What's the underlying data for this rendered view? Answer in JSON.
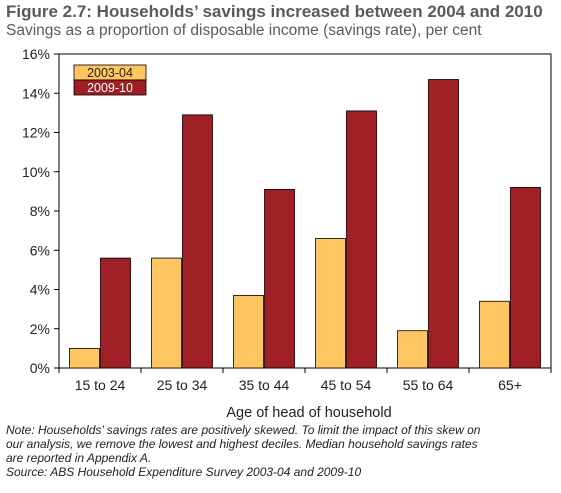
{
  "figure": {
    "title": "Figure 2.7: Households’ savings increased between 2004 and 2010",
    "subtitle": "Savings as a proportion of disposable income (savings rate), per cent"
  },
  "notes": {
    "line1": "Note: Households’ savings rates are positively skewed. To limit the impact of this skew on",
    "line2": "our analysis, we remove the lowest and highest deciles. Median household savings rates",
    "line3": "are reported in Appendix A.",
    "source": "Source: ABS Household Expenditure Survey 2003-04 and 2009-10"
  },
  "chart_data": {
    "type": "bar",
    "title": "",
    "xlabel": "Age of head of household",
    "ylabel": "",
    "categories": [
      "15 to 24",
      "25 to 34",
      "35 to 44",
      "45 to 54",
      "55 to 64",
      "65+"
    ],
    "series": [
      {
        "name": "2003-04",
        "color": "#ffc560",
        "values": [
          1.0,
          5.6,
          3.7,
          6.6,
          1.9,
          3.4
        ]
      },
      {
        "name": "2009-10",
        "color": "#9e1f24",
        "values": [
          5.6,
          12.9,
          9.1,
          13.1,
          14.7,
          9.2
        ]
      }
    ],
    "ylim": [
      0,
      16
    ],
    "yticks": [
      {
        "value": 0,
        "label": "0%"
      },
      {
        "value": 2,
        "label": "2%"
      },
      {
        "value": 4,
        "label": "4%"
      },
      {
        "value": 6,
        "label": "6%"
      },
      {
        "value": 8,
        "label": "8%"
      },
      {
        "value": 10,
        "label": "10%"
      },
      {
        "value": 12,
        "label": "12%"
      },
      {
        "value": 14,
        "label": "14%"
      },
      {
        "value": 16,
        "label": "16%"
      }
    ],
    "grid": false,
    "legend": "top-left"
  }
}
